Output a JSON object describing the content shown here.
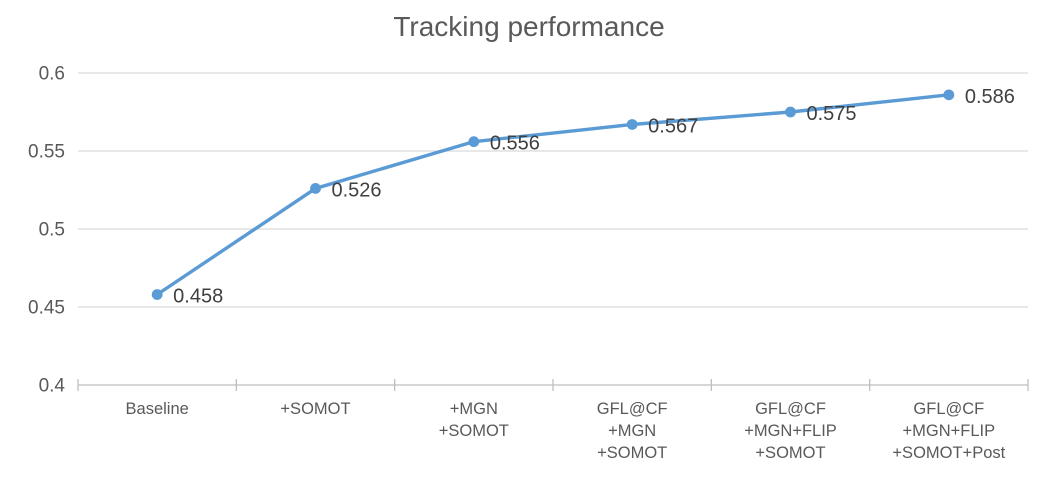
{
  "chart": {
    "title": "Tracking performance",
    "colors": {
      "series_line": "#5b9bd5",
      "marker_fill": "#5b9bd5",
      "gridline": "#d9d9d9",
      "axis_line": "#bfbfbf",
      "tick_mark": "#bfbfbf",
      "axis_label_text": "#595959",
      "data_label_text": "#404040",
      "title_text": "#595959",
      "background": "#ffffff"
    }
  },
  "chart_data": {
    "type": "line",
    "title": "Tracking performance",
    "categories": [
      "Baseline",
      "+SOMOT",
      "+MGN +SOMOT",
      "GFL@CF +MGN +SOMOT",
      "GFL@CF +MGN+FLIP +SOMOT",
      "GFL@CF +MGN+FLIP +SOMOT+Post"
    ],
    "category_label_lines": [
      [
        "Baseline"
      ],
      [
        "+SOMOT"
      ],
      [
        "+MGN",
        "+SOMOT"
      ],
      [
        "GFL@CF",
        "+MGN",
        "+SOMOT"
      ],
      [
        "GFL@CF",
        "+MGN+FLIP",
        "+SOMOT"
      ],
      [
        "GFL@CF",
        "+MGN+FLIP",
        "+SOMOT+Post"
      ]
    ],
    "series": [
      {
        "name": "Tracking performance",
        "values": [
          0.458,
          0.526,
          0.556,
          0.567,
          0.575,
          0.586
        ],
        "data_labels": [
          "0.458",
          "0.526",
          "0.556",
          "0.567",
          "0.575",
          "0.586"
        ]
      }
    ],
    "xlabel": "",
    "ylabel": "",
    "ylim": [
      0.4,
      0.6
    ],
    "yticks": [
      0.4,
      0.45,
      0.5,
      0.55,
      0.6
    ],
    "ytick_labels": [
      "0.4",
      "0.45",
      "0.5",
      "0.55",
      "0.6"
    ],
    "grid": true,
    "legend_position": "none",
    "marker": "circle",
    "data_label_position": "right"
  }
}
